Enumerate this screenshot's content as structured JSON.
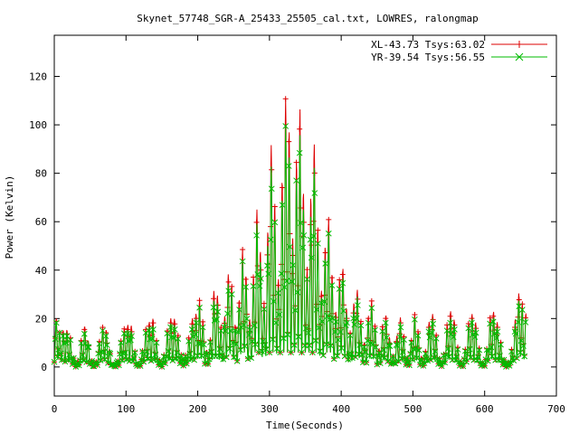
{
  "chart_data": {
    "type": "line",
    "title": "Skynet_57748_SGR-A_25433_25505_cal.txt, LOWRES, ralongmap",
    "xlabel": "Time(Seconds)",
    "ylabel": "Power (Kelvin)",
    "xlim": [
      0,
      700
    ],
    "ylim": [
      -12,
      137
    ],
    "xticks": [
      0,
      100,
      200,
      300,
      400,
      500,
      600,
      700
    ],
    "yticks": [
      0,
      20,
      40,
      60,
      80,
      100,
      120
    ],
    "grid": false,
    "legend_position": "top-right",
    "series": [
      {
        "name": "XL-43.73 Tsys:63.02",
        "color": "#dd0000",
        "marker": "plus",
        "envelope": [
          [
            0,
            14
          ],
          [
            4,
            23
          ],
          [
            8,
            13
          ],
          [
            12,
            15
          ],
          [
            16,
            16
          ],
          [
            22,
            13
          ],
          [
            26,
            5
          ],
          [
            30,
            1
          ],
          [
            34,
            3
          ],
          [
            38,
            12
          ],
          [
            42,
            17
          ],
          [
            46,
            14
          ],
          [
            50,
            5
          ],
          [
            54,
            1
          ],
          [
            58,
            2
          ],
          [
            62,
            10
          ],
          [
            66,
            16
          ],
          [
            70,
            17
          ],
          [
            74,
            14
          ],
          [
            78,
            6
          ],
          [
            82,
            1
          ],
          [
            86,
            1
          ],
          [
            90,
            5
          ],
          [
            94,
            14
          ],
          [
            98,
            16
          ],
          [
            102,
            17
          ],
          [
            106,
            20
          ],
          [
            110,
            12
          ],
          [
            114,
            3
          ],
          [
            118,
            1
          ],
          [
            122,
            5
          ],
          [
            126,
            14
          ],
          [
            130,
            18
          ],
          [
            134,
            19
          ],
          [
            138,
            20
          ],
          [
            142,
            12
          ],
          [
            146,
            3
          ],
          [
            150,
            1
          ],
          [
            154,
            7
          ],
          [
            158,
            16
          ],
          [
            162,
            20
          ],
          [
            166,
            21
          ],
          [
            170,
            18
          ],
          [
            174,
            10
          ],
          [
            178,
            4
          ],
          [
            182,
            4
          ],
          [
            186,
            9
          ],
          [
            190,
            17
          ],
          [
            194,
            22
          ],
          [
            198,
            22
          ],
          [
            202,
            28
          ],
          [
            206,
            24
          ],
          [
            210,
            10
          ],
          [
            214,
            5
          ],
          [
            218,
            12
          ],
          [
            222,
            31
          ],
          [
            226,
            34
          ],
          [
            230,
            22
          ],
          [
            234,
            13
          ],
          [
            238,
            22
          ],
          [
            242,
            38
          ],
          [
            246,
            40
          ],
          [
            250,
            22
          ],
          [
            254,
            14
          ],
          [
            258,
            29
          ],
          [
            262,
            49
          ],
          [
            266,
            45
          ],
          [
            270,
            24
          ],
          [
            274,
            17
          ],
          [
            278,
            40
          ],
          [
            282,
            66
          ],
          [
            286,
            58
          ],
          [
            290,
            30
          ],
          [
            294,
            24
          ],
          [
            298,
            60
          ],
          [
            302,
            93
          ],
          [
            306,
            82
          ],
          [
            310,
            40
          ],
          [
            314,
            34
          ],
          [
            318,
            82
          ],
          [
            322,
            110
          ],
          [
            326,
            116
          ],
          [
            330,
            65
          ],
          [
            334,
            46
          ],
          [
            338,
            90
          ],
          [
            342,
            109
          ],
          [
            346,
            88
          ],
          [
            350,
            44
          ],
          [
            354,
            38
          ],
          [
            358,
            74
          ],
          [
            362,
            95
          ],
          [
            366,
            70
          ],
          [
            370,
            34
          ],
          [
            374,
            30
          ],
          [
            378,
            52
          ],
          [
            382,
            63
          ],
          [
            386,
            46
          ],
          [
            390,
            24
          ],
          [
            394,
            22
          ],
          [
            398,
            38
          ],
          [
            402,
            42
          ],
          [
            406,
            30
          ],
          [
            410,
            14
          ],
          [
            414,
            14
          ],
          [
            418,
            28
          ],
          [
            422,
            33
          ],
          [
            426,
            24
          ],
          [
            430,
            10
          ],
          [
            434,
            10
          ],
          [
            438,
            22
          ],
          [
            442,
            28
          ],
          [
            446,
            22
          ],
          [
            450,
            8
          ],
          [
            454,
            7
          ],
          [
            458,
            18
          ],
          [
            462,
            22
          ],
          [
            466,
            16
          ],
          [
            470,
            5
          ],
          [
            474,
            4
          ],
          [
            478,
            14
          ],
          [
            482,
            21
          ],
          [
            486,
            17
          ],
          [
            490,
            5
          ],
          [
            494,
            3
          ],
          [
            498,
            12
          ],
          [
            502,
            22
          ],
          [
            506,
            19
          ],
          [
            510,
            7
          ],
          [
            514,
            2
          ],
          [
            518,
            7
          ],
          [
            522,
            18
          ],
          [
            526,
            23
          ],
          [
            530,
            20
          ],
          [
            534,
            9
          ],
          [
            538,
            2
          ],
          [
            542,
            3
          ],
          [
            546,
            14
          ],
          [
            550,
            23
          ],
          [
            554,
            23
          ],
          [
            558,
            19
          ],
          [
            562,
            9
          ],
          [
            566,
            2
          ],
          [
            570,
            2
          ],
          [
            574,
            10
          ],
          [
            578,
            19
          ],
          [
            582,
            22
          ],
          [
            586,
            21
          ],
          [
            590,
            14
          ],
          [
            594,
            4
          ],
          [
            598,
            1
          ],
          [
            602,
            5
          ],
          [
            606,
            18
          ],
          [
            610,
            24
          ],
          [
            614,
            22
          ],
          [
            618,
            18
          ],
          [
            622,
            11
          ],
          [
            626,
            4
          ],
          [
            630,
            1
          ],
          [
            634,
            2
          ],
          [
            638,
            8
          ],
          [
            642,
            18
          ],
          [
            646,
            30
          ],
          [
            650,
            31
          ],
          [
            654,
            23
          ],
          [
            658,
            22
          ]
        ]
      },
      {
        "name": "YR-39.54 Tsys:56.55",
        "color": "#00bb00",
        "marker": "cross",
        "envelope": [
          [
            0,
            14
          ],
          [
            4,
            22
          ],
          [
            8,
            13
          ],
          [
            12,
            14
          ],
          [
            16,
            15
          ],
          [
            22,
            12
          ],
          [
            26,
            5
          ],
          [
            30,
            1
          ],
          [
            34,
            2
          ],
          [
            38,
            11
          ],
          [
            42,
            15
          ],
          [
            46,
            13
          ],
          [
            50,
            5
          ],
          [
            54,
            1
          ],
          [
            58,
            2
          ],
          [
            62,
            9
          ],
          [
            66,
            15
          ],
          [
            70,
            15
          ],
          [
            74,
            13
          ],
          [
            78,
            6
          ],
          [
            82,
            1
          ],
          [
            86,
            1
          ],
          [
            90,
            5
          ],
          [
            94,
            13
          ],
          [
            98,
            14
          ],
          [
            102,
            15
          ],
          [
            106,
            17
          ],
          [
            110,
            11
          ],
          [
            114,
            3
          ],
          [
            118,
            1
          ],
          [
            122,
            5
          ],
          [
            126,
            13
          ],
          [
            130,
            16
          ],
          [
            134,
            17
          ],
          [
            138,
            17
          ],
          [
            142,
            11
          ],
          [
            146,
            3
          ],
          [
            150,
            1
          ],
          [
            154,
            6
          ],
          [
            158,
            15
          ],
          [
            162,
            18
          ],
          [
            166,
            18
          ],
          [
            170,
            16
          ],
          [
            174,
            9
          ],
          [
            178,
            4
          ],
          [
            182,
            4
          ],
          [
            186,
            8
          ],
          [
            190,
            15
          ],
          [
            194,
            19
          ],
          [
            198,
            20
          ],
          [
            202,
            25
          ],
          [
            206,
            21
          ],
          [
            210,
            9
          ],
          [
            214,
            5
          ],
          [
            218,
            11
          ],
          [
            222,
            27
          ],
          [
            226,
            30
          ],
          [
            230,
            20
          ],
          [
            234,
            12
          ],
          [
            238,
            20
          ],
          [
            242,
            34
          ],
          [
            246,
            36
          ],
          [
            250,
            20
          ],
          [
            254,
            13
          ],
          [
            258,
            26
          ],
          [
            262,
            44
          ],
          [
            266,
            41
          ],
          [
            270,
            22
          ],
          [
            274,
            15
          ],
          [
            278,
            36
          ],
          [
            282,
            60
          ],
          [
            286,
            53
          ],
          [
            290,
            27
          ],
          [
            294,
            22
          ],
          [
            298,
            54
          ],
          [
            302,
            84
          ],
          [
            306,
            74
          ],
          [
            310,
            36
          ],
          [
            314,
            31
          ],
          [
            318,
            74
          ],
          [
            322,
            99
          ],
          [
            326,
            103
          ],
          [
            330,
            59
          ],
          [
            334,
            42
          ],
          [
            338,
            82
          ],
          [
            342,
            98
          ],
          [
            346,
            80
          ],
          [
            350,
            40
          ],
          [
            354,
            34
          ],
          [
            358,
            66
          ],
          [
            362,
            85
          ],
          [
            366,
            63
          ],
          [
            370,
            31
          ],
          [
            374,
            27
          ],
          [
            378,
            47
          ],
          [
            382,
            57
          ],
          [
            386,
            42
          ],
          [
            390,
            22
          ],
          [
            394,
            20
          ],
          [
            398,
            34
          ],
          [
            402,
            38
          ],
          [
            406,
            27
          ],
          [
            410,
            13
          ],
          [
            414,
            13
          ],
          [
            418,
            25
          ],
          [
            422,
            30
          ],
          [
            426,
            22
          ],
          [
            430,
            9
          ],
          [
            434,
            9
          ],
          [
            438,
            20
          ],
          [
            442,
            25
          ],
          [
            446,
            20
          ],
          [
            450,
            7
          ],
          [
            454,
            6
          ],
          [
            458,
            16
          ],
          [
            462,
            20
          ],
          [
            466,
            14
          ],
          [
            470,
            5
          ],
          [
            474,
            4
          ],
          [
            478,
            12
          ],
          [
            482,
            19
          ],
          [
            486,
            15
          ],
          [
            490,
            5
          ],
          [
            494,
            3
          ],
          [
            498,
            11
          ],
          [
            502,
            20
          ],
          [
            506,
            17
          ],
          [
            510,
            6
          ],
          [
            514,
            2
          ],
          [
            518,
            6
          ],
          [
            522,
            16
          ],
          [
            526,
            21
          ],
          [
            530,
            18
          ],
          [
            534,
            8
          ],
          [
            538,
            2
          ],
          [
            542,
            3
          ],
          [
            546,
            12
          ],
          [
            550,
            20
          ],
          [
            554,
            20
          ],
          [
            558,
            17
          ],
          [
            562,
            8
          ],
          [
            566,
            2
          ],
          [
            570,
            2
          ],
          [
            574,
            9
          ],
          [
            578,
            17
          ],
          [
            582,
            20
          ],
          [
            586,
            19
          ],
          [
            590,
            12
          ],
          [
            594,
            4
          ],
          [
            598,
            1
          ],
          [
            602,
            5
          ],
          [
            606,
            16
          ],
          [
            610,
            21
          ],
          [
            614,
            20
          ],
          [
            618,
            16
          ],
          [
            622,
            10
          ],
          [
            626,
            4
          ],
          [
            630,
            1
          ],
          [
            634,
            2
          ],
          [
            638,
            7
          ],
          [
            642,
            16
          ],
          [
            646,
            27
          ],
          [
            650,
            28
          ],
          [
            654,
            21
          ],
          [
            658,
            20
          ]
        ]
      }
    ]
  }
}
